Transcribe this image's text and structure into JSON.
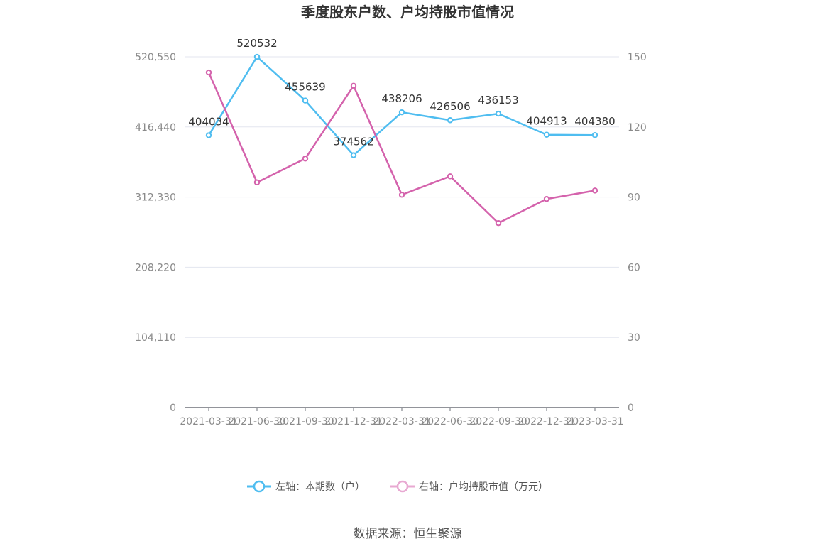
{
  "chart_data": {
    "type": "line",
    "title": "季度股东户数、户均持股市值情况",
    "categories": [
      "2021-03-31",
      "2021-06-30",
      "2021-09-30",
      "2021-12-31",
      "2022-03-31",
      "2022-06-30",
      "2022-09-30",
      "2022-12-31",
      "2023-03-31"
    ],
    "left_axis": {
      "ticks": [
        "0",
        "104,110",
        "208,220",
        "312,330",
        "416,440",
        "520,550"
      ],
      "ylim": [
        0,
        520550
      ]
    },
    "right_axis": {
      "ticks": [
        "0",
        "30",
        "60",
        "90",
        "120",
        "150"
      ],
      "ylim": [
        0,
        150
      ]
    },
    "series": [
      {
        "name": "左轴：本期数（户）",
        "axis": "left",
        "color": "#4fbdf0",
        "values": [
          404034,
          520532,
          455639,
          374562,
          438206,
          426506,
          436153,
          404913,
          404380
        ],
        "labels": [
          "404034",
          "520532",
          "455639",
          "374562",
          "438206",
          "426506",
          "436153",
          "404913",
          "404380"
        ]
      },
      {
        "name": "右轴：户均持股市值（万元）",
        "axis": "right",
        "color": "#d462ac",
        "values": [
          143.3,
          96.3,
          106.5,
          137.6,
          91.0,
          98.9,
          78.9,
          89.2,
          92.8
        ]
      }
    ],
    "grid": true,
    "legend_position": "bottom",
    "source": "数据来源：恒生聚源"
  }
}
